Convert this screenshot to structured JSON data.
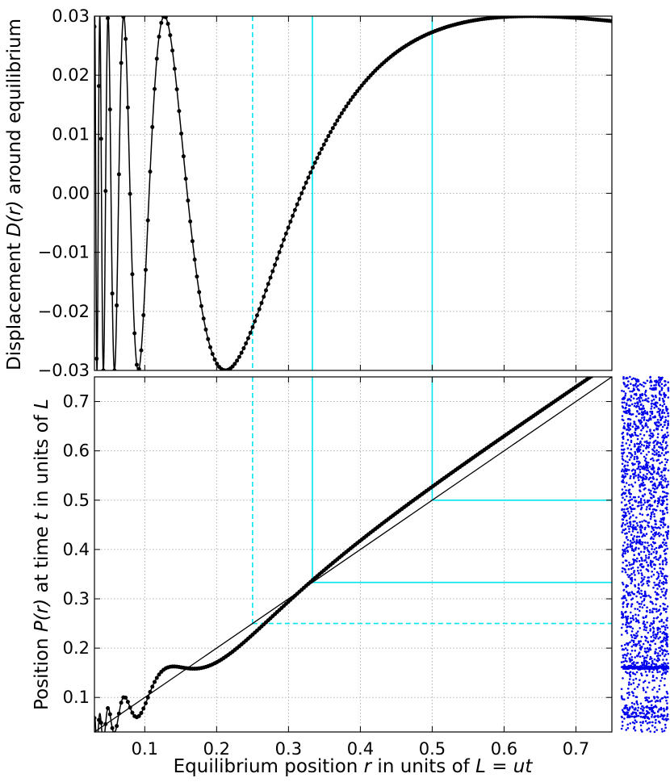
{
  "chart_data": [
    {
      "type": "line",
      "panel": "top",
      "ylabel": "Displacement D(r) around equilibrium",
      "xlim": [
        0.03,
        0.75
      ],
      "ylim": [
        -0.03,
        0.03
      ],
      "yticks": [
        -0.03,
        -0.02,
        -0.01,
        0.0,
        0.01,
        0.02,
        0.03
      ],
      "ytick_labels": [
        "−0.03",
        "−0.02",
        "−0.01",
        "0.00",
        "0.01",
        "0.02",
        "0.03"
      ],
      "xticks": [
        0.1,
        0.2,
        0.3,
        0.4,
        0.5,
        0.6,
        0.7
      ],
      "grid": true,
      "series": [
        {
          "formula": "D(r) = 0.03 * sin(1/r)",
          "style": "black line with dot markers"
        }
      ],
      "vlines": [
        {
          "x": 0.25,
          "style": "dashed",
          "color": "#00e5ee"
        },
        {
          "x": 0.3333,
          "style": "solid",
          "color": "#00e5ee"
        },
        {
          "x": 0.5,
          "style": "solid",
          "color": "#00e5ee"
        }
      ]
    },
    {
      "type": "line",
      "panel": "bottom",
      "xlabel": "Equilibrium position r in units of L = ut",
      "ylabel": "Position P(r) at time t in units of L",
      "xlim": [
        0.03,
        0.75
      ],
      "ylim": [
        0.03,
        0.75
      ],
      "xticks": [
        0.1,
        0.2,
        0.3,
        0.4,
        0.5,
        0.6,
        0.7
      ],
      "xtick_labels": [
        "0.1",
        "0.2",
        "0.3",
        "0.4",
        "0.5",
        "0.6",
        "0.7"
      ],
      "yticks": [
        0.1,
        0.2,
        0.3,
        0.4,
        0.5,
        0.6,
        0.7
      ],
      "ytick_labels": [
        "0.1",
        "0.2",
        "0.3",
        "0.4",
        "0.5",
        "0.6",
        "0.7"
      ],
      "grid": true,
      "series": [
        {
          "formula": "P(r) = r + 0.03 * sin(1/r)",
          "style": "black line with dot markers"
        },
        {
          "formula": "P(r) = r",
          "style": "thin black line"
        }
      ],
      "guides": [
        {
          "x": 0.25,
          "y": 0.25,
          "style": "dashed",
          "color": "#00e5ee"
        },
        {
          "x": 0.3333,
          "y": 0.3333,
          "style": "solid",
          "color": "#00e5ee"
        },
        {
          "x": 0.5,
          "y": 0.5,
          "style": "solid",
          "color": "#00e5ee"
        }
      ]
    },
    {
      "type": "scatter",
      "panel": "side",
      "description": "particle positions P(r) for random r, clustering near 0.25, 0.333, 0.5",
      "ylim": [
        0.03,
        0.75
      ],
      "color": "#0000ee"
    }
  ],
  "labels": {
    "top_ylabel_pre": "Displacement ",
    "top_ylabel_math": "D(r)",
    "top_ylabel_post": " around equilibrium",
    "bottom_ylabel_pre": "Position ",
    "bottom_ylabel_math": "P(r)",
    "bottom_ylabel_mid": " at time ",
    "bottom_ylabel_t": "t",
    "bottom_ylabel_post": " in units of ",
    "bottom_ylabel_L": "L",
    "xlabel_pre": "Equilibrium position ",
    "xlabel_r": "r",
    "xlabel_mid": " in units of ",
    "xlabel_math": "L = ut"
  }
}
